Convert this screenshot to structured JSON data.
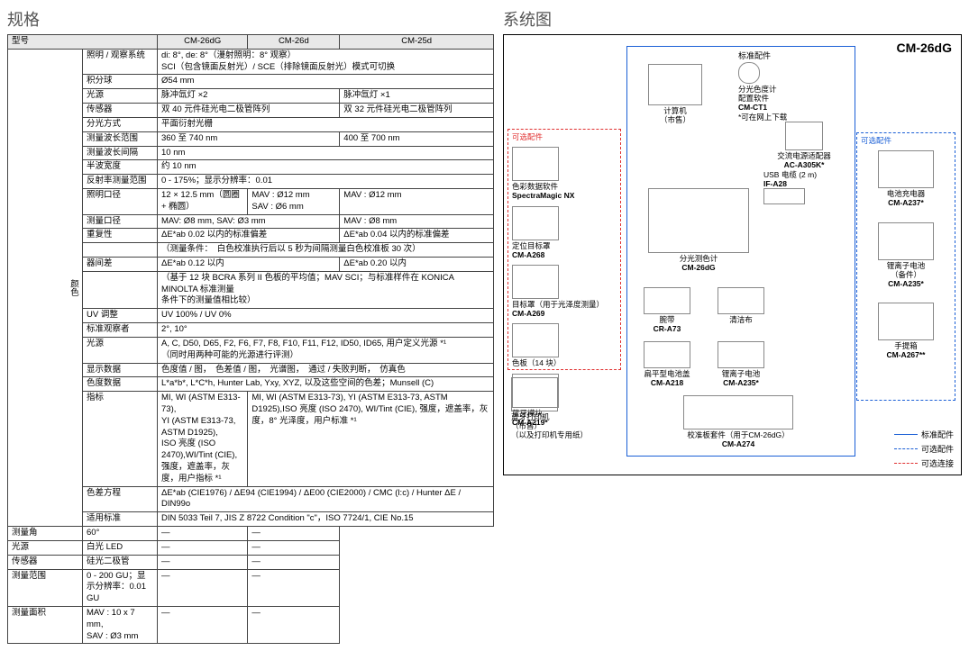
{
  "left": {
    "title": "规格",
    "headerRow": [
      "型号",
      "CM-26dG",
      "CM-26d",
      "CM-25d"
    ],
    "groupLabel": "颜色",
    "rows": [
      {
        "label": "照明 / 观察系统",
        "cells": [
          {
            "text": "di: 8°, de: 8°（漫射照明：8° 观察）\nSCI（包含镜面反射光）/ SCE（排除镜面反射光）模式可切换",
            "span": 3
          }
        ]
      },
      {
        "label": "积分球",
        "cells": [
          {
            "text": "Ø54 mm",
            "span": 3
          }
        ]
      },
      {
        "label": "光源",
        "cells": [
          {
            "text": "脉冲氙灯 ×2",
            "span": 2
          },
          {
            "text": "脉冲氙灯 ×1",
            "span": 1
          }
        ]
      },
      {
        "label": "传感器",
        "cells": [
          {
            "text": "双 40 元件硅光电二极管阵列",
            "span": 2
          },
          {
            "text": "双 32 元件硅光电二极管阵列",
            "span": 1
          }
        ]
      },
      {
        "label": "分光方式",
        "cells": [
          {
            "text": "平面衍射光栅",
            "span": 3
          }
        ]
      },
      {
        "label": "测量波长范围",
        "cells": [
          {
            "text": "360 至 740 nm",
            "span": 2
          },
          {
            "text": "400 至 700 nm",
            "span": 1
          }
        ]
      },
      {
        "label": "测量波长间隔",
        "cells": [
          {
            "text": "10 nm",
            "span": 3
          }
        ]
      },
      {
        "label": "半波宽度",
        "cells": [
          {
            "text": "约 10 nm",
            "span": 3
          }
        ]
      },
      {
        "label": "反射率测量范围",
        "cells": [
          {
            "text": "0 - 175%；显示分辨率：0.01",
            "span": 3
          }
        ]
      },
      {
        "label": "照明口径",
        "cells": [
          {
            "text": "12 × 12.5 mm（圆圈 + 椭圆）",
            "span": 1
          },
          {
            "text": "MAV : Ø12 mm\nSAV : Ø6 mm",
            "span": 1
          },
          {
            "text": "MAV : Ø12 mm",
            "span": 1
          }
        ]
      },
      {
        "label": "测量口径",
        "cells": [
          {
            "text": "MAV: Ø8 mm, SAV: Ø3 mm",
            "span": 2
          },
          {
            "text": "MAV : Ø8 mm",
            "span": 1
          }
        ]
      },
      {
        "label": "重复性",
        "cells": [
          {
            "text": "ΔE*ab 0.02 以内的标准偏差",
            "span": 2
          },
          {
            "text": "ΔE*ab 0.04 以内的标准偏差",
            "span": 1
          }
        ]
      },
      {
        "label": "",
        "cells": [
          {
            "text": "（测量条件：　白色校准执行后以 5 秒为间隔测量白色校准板 30 次）",
            "span": 3
          }
        ]
      },
      {
        "label": "器间差",
        "cells": [
          {
            "text": "ΔE*ab 0.12 以内",
            "span": 2
          },
          {
            "text": "ΔE*ab 0.20 以内",
            "span": 1
          }
        ]
      },
      {
        "label": "",
        "cells": [
          {
            "text": "（基于 12 块 BCRA 系列 II 色板的平均值；MAV SCI；与标准样件在 KONICA MINOLTA 标准测量\n条件下的测量值相比较）",
            "span": 3
          }
        ]
      },
      {
        "label": "UV 调整",
        "cells": [
          {
            "text": "UV 100% / UV 0%",
            "span": 3
          }
        ]
      },
      {
        "label": "标准观察者",
        "cells": [
          {
            "text": "2°, 10°",
            "span": 3
          }
        ]
      },
      {
        "label": "光源",
        "cells": [
          {
            "text": "A, C, D50, D65, F2, F6, F7, F8, F10, F11, F12, ID50, ID65, 用户定义光源 *¹\n（同时用两种可能的光源进行评测）",
            "span": 3
          }
        ]
      },
      {
        "label": "显示数据",
        "cells": [
          {
            "text": "色度值 / 图，　色差值 / 图，　光谱图，　通过 / 失败判断，　仿真色",
            "span": 3
          }
        ]
      },
      {
        "label": "色度数据",
        "cells": [
          {
            "text": "L*a*b*, L*C*h, Hunter Lab, Yxy, XYZ, 以及这些空间的色差；Munsell (C)",
            "span": 3
          }
        ]
      },
      {
        "label": "指标",
        "cells": [
          {
            "text": "MI, WI (ASTM E313-73), \nYI (ASTM E313-73, ASTM D1925), \nISO 亮度 (ISO 2470),WI/Tint (CIE), \n强度，遮盖率，灰度，用户指标 *¹",
            "span": 1
          },
          {
            "text": "MI, WI (ASTM E313-73), YI (ASTM E313-73, ASTM D1925),ISO 亮度 (ISO 2470), WI/Tint (CIE), 强度，遮盖率，灰度，8° 光泽度，用户标准 *¹",
            "span": 2
          }
        ]
      },
      {
        "label": "色差方程",
        "cells": [
          {
            "text": "ΔE*ab (CIE1976) / ΔE94 (CIE1994) / ΔE00 (CIE2000) / CMC (l:c) / Hunter ΔE / DIN99o",
            "span": 3
          }
        ]
      },
      {
        "label": "适用标准",
        "cells": [
          {
            "text": "DIN 5033 Teil 7, JIS Z 8722 Condition \"c\"，ISO 7724/1, CIE No.15",
            "span": 3
          }
        ]
      }
    ],
    "rows2": [
      {
        "label": "测量角",
        "cells": [
          {
            "text": "60°",
            "span": 1
          },
          {
            "text": "—",
            "span": 1
          },
          {
            "text": "—",
            "span": 1
          }
        ]
      },
      {
        "label": "光源",
        "cells": [
          {
            "text": "白光 LED",
            "span": 1
          },
          {
            "text": "—",
            "span": 1
          },
          {
            "text": "—",
            "span": 1
          }
        ]
      },
      {
        "label": "传感器",
        "cells": [
          {
            "text": "硅光二极管",
            "span": 1
          },
          {
            "text": "—",
            "span": 1
          },
          {
            "text": "—",
            "span": 1
          }
        ]
      },
      {
        "label": "测量范围",
        "cells": [
          {
            "text": "0 - 200 GU；显示分辨率：0.01 GU",
            "span": 1
          },
          {
            "text": "—",
            "span": 1
          },
          {
            "text": "—",
            "span": 1
          }
        ]
      },
      {
        "label": "测量面积",
        "cells": [
          {
            "text": "MAV : 10 x 7 mm,\nSAV : Ø3 mm",
            "span": 1
          },
          {
            "text": "—",
            "span": 1
          },
          {
            "text": "—",
            "span": 1
          }
        ]
      }
    ]
  },
  "right": {
    "title": "系统图",
    "model": "CM-26dG",
    "stdLabel": "标准配件",
    "optLabel": "可选配件",
    "connLabel": "可选连接",
    "col1Head": "可选配件",
    "col1": [
      {
        "l1": "色彩数据软件",
        "l2": "SpectraMagic NX"
      },
      {
        "l1": "定位目标罩",
        "l2": "CM-A268"
      },
      {
        "l1": "目标罩（用于光泽度测量）",
        "l2": "CM-A269"
      },
      {
        "l1": "色板（14 块）",
        "l2": ""
      },
      {
        "l1": "蓝牙模块",
        "l2": "CM-A219*"
      },
      {
        "l1": "蓝牙打印机\n（市售）\n（以及打印机专用纸）",
        "l2": ""
      }
    ],
    "centerTop": {
      "l1": "计算机\n（市售）",
      "l2": ""
    },
    "centerItems": [
      {
        "l1": "分光测色计",
        "l2": "CM-26dG"
      },
      {
        "l1": "腕带",
        "l2": "CR-A73",
        "l3": "清洁布"
      },
      {
        "l1": "扁平型电池盖",
        "l2": "CM-A218",
        "l3": "锂离子电池",
        "l4": "CM-A235*"
      },
      {
        "l1": "校准板套件（用于CM-26dG）",
        "l2": "CM-A274"
      }
    ],
    "col3Top": [
      {
        "l1": "分光色度计\n配置软件",
        "l2": "CM-CT1",
        "l3": "*可在网上下载"
      },
      {
        "l1": "交流电源适配器",
        "l2": "AC-A305K*"
      },
      {
        "l1": "USB 电缆 (2 m)",
        "l2": "IF-A28"
      }
    ],
    "col4Head": "可选配件",
    "col4": [
      {
        "l1": "电池充电器",
        "l2": "CM-A237*"
      },
      {
        "l1": "锂离子电池\n（备件）",
        "l2": "CM-A235*"
      },
      {
        "l1": "手提箱",
        "l2": "CM-A267**"
      }
    ],
    "legend": [
      "标准配件",
      "可选配件",
      "可选连接"
    ]
  }
}
